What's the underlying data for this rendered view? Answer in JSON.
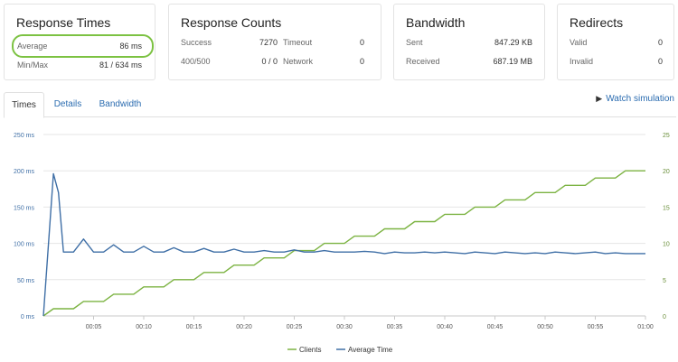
{
  "cards": {
    "response_times": {
      "title": "Response Times",
      "average_label": "Average",
      "average_value": "86 ms",
      "minmax_label": "Min/Max",
      "minmax_value": "81 / 634 ms"
    },
    "response_counts": {
      "title": "Response Counts",
      "success_label": "Success",
      "success_value": "7270",
      "timeout_label": "Timeout",
      "timeout_value": "0",
      "err_label": "400/500",
      "err_value": "0 / 0",
      "network_label": "Network",
      "network_value": "0"
    },
    "bandwidth": {
      "title": "Bandwidth",
      "sent_label": "Sent",
      "sent_value": "847.29 KB",
      "received_label": "Received",
      "received_value": "687.19 MB"
    },
    "redirects": {
      "title": "Redirects",
      "valid_label": "Valid",
      "valid_value": "0",
      "invalid_label": "Invalid",
      "invalid_value": "0"
    }
  },
  "tabs": [
    {
      "label": "Times"
    },
    {
      "label": "Details"
    },
    {
      "label": "Bandwidth"
    }
  ],
  "watch_label": "Watch simulation",
  "colors": {
    "clients": "#7cb342",
    "average_time": "#3f6fa6",
    "highlight": "#7cc242",
    "link": "#2b6cb0"
  },
  "chart_data": {
    "type": "line",
    "x_tick_labels": [
      "00:05",
      "00:10",
      "00:15",
      "00:20",
      "00:25",
      "00:30",
      "00:35",
      "00:40",
      "00:45",
      "00:50",
      "00:55",
      "01:00"
    ],
    "y_left_ticks": [
      "0 ms",
      "50 ms",
      "100 ms",
      "150 ms",
      "200 ms",
      "250 ms"
    ],
    "y_right_ticks": [
      "0",
      "5",
      "10",
      "15",
      "20",
      "25"
    ],
    "xlim": [
      0,
      60
    ],
    "ylim_left": [
      0,
      250
    ],
    "ylim_right": [
      0,
      25
    ],
    "grid": true,
    "legend_position": "bottom",
    "series": [
      {
        "name": "Clients",
        "axis": "right",
        "x": [
          0,
          1,
          3,
          4,
          6,
          7,
          9,
          10,
          12,
          13,
          15,
          16,
          18,
          19,
          21,
          22,
          24,
          25,
          27,
          28,
          30,
          31,
          33,
          34,
          36,
          37,
          39,
          40,
          42,
          43,
          45,
          46,
          48,
          49,
          51,
          52,
          54,
          55,
          57,
          58,
          60
        ],
        "values": [
          0,
          1,
          1,
          2,
          2,
          3,
          3,
          4,
          4,
          5,
          5,
          6,
          6,
          7,
          7,
          8,
          8,
          9,
          9,
          10,
          10,
          11,
          11,
          12,
          12,
          13,
          13,
          14,
          14,
          15,
          15,
          16,
          16,
          17,
          17,
          18,
          18,
          19,
          19,
          20,
          20
        ]
      },
      {
        "name": "Average Time",
        "axis": "left",
        "x": [
          0,
          1,
          1.5,
          2,
          3,
          4,
          5,
          6,
          7,
          8,
          9,
          10,
          11,
          12,
          13,
          14,
          15,
          16,
          17,
          18,
          19,
          20,
          21,
          22,
          23,
          24,
          25,
          26,
          27,
          28,
          29,
          30,
          31,
          32,
          33,
          34,
          35,
          36,
          37,
          38,
          39,
          40,
          41,
          42,
          43,
          44,
          45,
          46,
          47,
          48,
          49,
          50,
          51,
          52,
          53,
          54,
          55,
          56,
          57,
          58,
          59,
          60
        ],
        "values": [
          0,
          196,
          170,
          88,
          88,
          106,
          88,
          88,
          98,
          88,
          88,
          96,
          88,
          88,
          94,
          88,
          88,
          93,
          88,
          88,
          92,
          88,
          88,
          90,
          88,
          88,
          91,
          88,
          88,
          90,
          88,
          88,
          88,
          89,
          88,
          86,
          88,
          87,
          87,
          88,
          87,
          88,
          87,
          86,
          88,
          87,
          86,
          88,
          87,
          86,
          87,
          86,
          88,
          87,
          86,
          87,
          88,
          86,
          87,
          86,
          86,
          86
        ]
      }
    ]
  }
}
